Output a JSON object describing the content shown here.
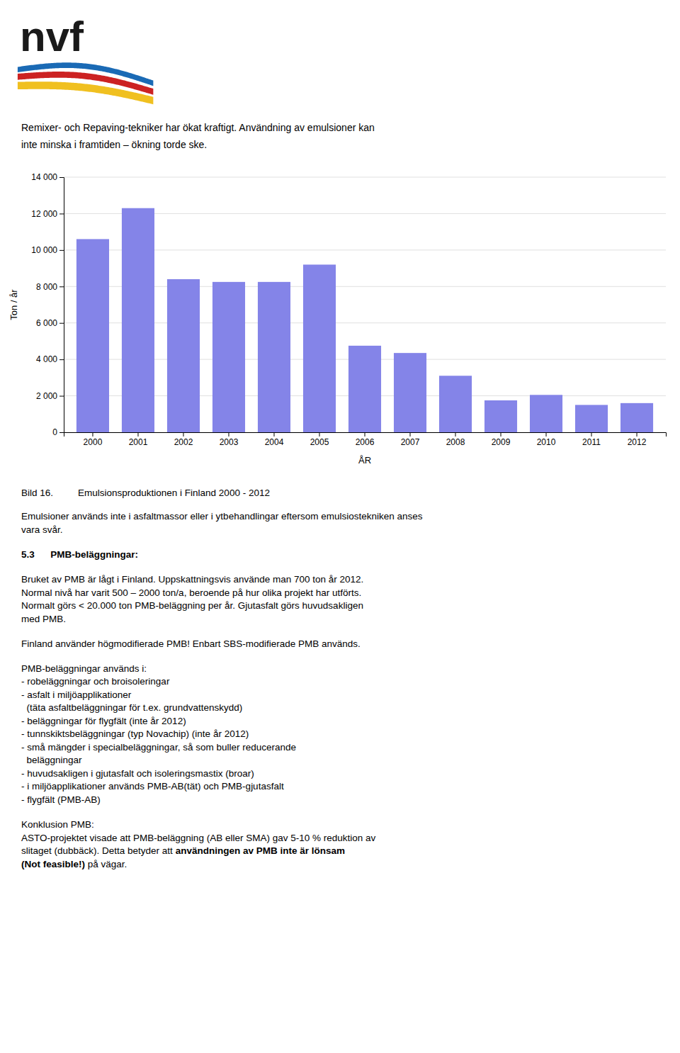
{
  "logo_text": "nvf",
  "header": [
    "Remixer- och Repaving-tekniker har ökat kraftigt. Användning av emulsioner kan",
    "inte minska i framtiden – ökning torde ske."
  ],
  "chart_data": {
    "type": "bar",
    "categories": [
      "2000",
      "2001",
      "2002",
      "2003",
      "2004",
      "2005",
      "2006",
      "2007",
      "2008",
      "2009",
      "2010",
      "2011",
      "2012"
    ],
    "values": [
      10600,
      12300,
      8400,
      8250,
      8250,
      9200,
      4750,
      4350,
      3100,
      1750,
      2050,
      1500,
      1600
    ],
    "color": "#8484e8",
    "xlabel": "ÅR",
    "ylabel": "Ton / år",
    "ylim": [
      0,
      14000
    ],
    "yticks": [
      0,
      {
        "value": 2000,
        "label": "2 000"
      },
      {
        "value": 4000,
        "label": "4 000"
      },
      {
        "value": 6000,
        "label": "6 000"
      },
      {
        "value": 8000,
        "label": "8 000"
      },
      {
        "value": 10000,
        "label": "10 000"
      },
      {
        "value": 12000,
        "label": "12 000"
      },
      {
        "value": 14000,
        "label": "14 000"
      }
    ],
    "grid": true
  },
  "caption": {
    "label": "Bild 16.",
    "text": "Emulsionsproduktionen i Finland 2000 - 2012"
  },
  "paragraphs": [
    {
      "lines": [
        [
          {
            "text": "Emulsioner används inte i asfaltmassor eller i ytbehandlingar eftersom emulsiostekniken anses",
            "bold": false
          }
        ],
        [
          {
            "text": "vara svår.",
            "bold": false
          }
        ]
      ]
    },
    {
      "lines": [
        [
          {
            "text": "5.3      PMB-beläggningar:",
            "bold": true
          }
        ]
      ]
    },
    {
      "lines": [
        [
          {
            "text": "Bruket av PMB är lågt i Finland. Uppskattningsvis använde man 700 ton år 2012.",
            "bold": false
          }
        ],
        [
          {
            "text": "Normal nivå har varit 500 – 2000 ton/a, beroende på hur olika projekt har utförts.",
            "bold": false
          }
        ],
        [
          {
            "text": "Normalt görs < 20.000 ton PMB-beläggning per år. Gjutasfalt görs huvudsakligen",
            "bold": false
          }
        ],
        [
          {
            "text": "med PMB.",
            "bold": false
          }
        ]
      ]
    },
    {
      "lines": [
        [
          {
            "text": "Finland använder högmodifierade PMB! Enbart SBS-modifierade PMB används.",
            "bold": false
          }
        ]
      ]
    },
    {
      "lines": [
        [
          {
            "text": "PMB-beläggningar används i:",
            "bold": false
          }
        ],
        [
          {
            "text": "- robeläggningar och broisoleringar",
            "bold": false
          }
        ],
        [
          {
            "text": "- asfalt i miljöapplikationer",
            "bold": false
          }
        ],
        [
          {
            "text": "  (täta asfaltbeläggningar för t.ex. grundvattenskydd)",
            "bold": false
          }
        ],
        [
          {
            "text": "- beläggningar för flygfält (inte år 2012)",
            "bold": false
          }
        ],
        [
          {
            "text": "- tunnskiktsbeläggningar (typ Novachip) (inte år 2012)",
            "bold": false
          }
        ],
        [
          {
            "text": "- små mängder i specialbeläggningar, så som buller reducerande",
            "bold": false
          }
        ],
        [
          {
            "text": "  beläggningar",
            "bold": false
          }
        ],
        [
          {
            "text": "- huvudsakligen i gjutasfalt och isoleringsmastix (broar)",
            "bold": false
          }
        ],
        [
          {
            "text": "- i miljöapplikationer används PMB-AB(tät) och PMB-gjutasfalt",
            "bold": false
          }
        ],
        [
          {
            "text": "- flygfält (PMB-AB)",
            "bold": false
          }
        ]
      ]
    },
    {
      "lines": [
        [
          {
            "text": "Konklusion PMB:",
            "bold": false
          }
        ],
        [
          {
            "text": "ASTO-projektet visade att PMB-beläggning (AB eller SMA) gav 5-10 % reduktion av",
            "bold": false
          }
        ],
        [
          {
            "text": "slitaget (dubbäck). Detta betyder att ",
            "bold": false
          },
          {
            "text": "användningen av PMB inte är lönsam",
            "bold": true
          }
        ],
        [
          {
            "text": "(Not feasible!)",
            "bold": true
          },
          {
            "text": " på vägar.",
            "bold": false
          }
        ]
      ]
    }
  ]
}
